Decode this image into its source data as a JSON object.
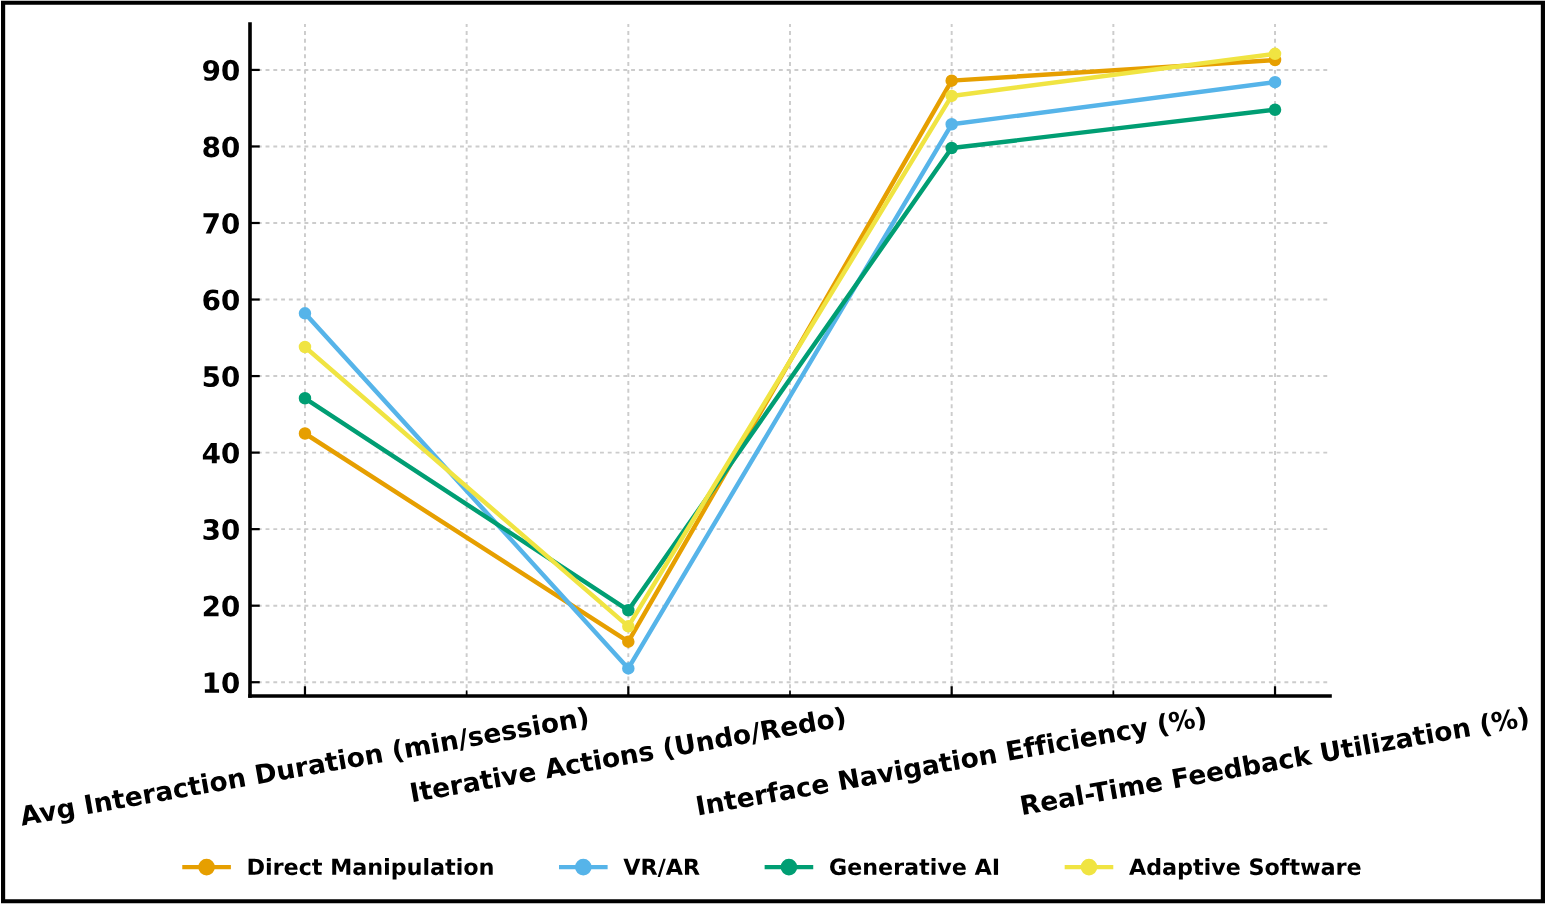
{
  "chart_data": {
    "type": "line",
    "categories": [
      "Avg Interaction Duration (min/session)",
      "Iterative Actions (Undo/Redo)",
      "Interface Navigation Efficiency (%)",
      "Real-Time Feedback Utilization (%)"
    ],
    "series": [
      {
        "name": "Direct Manipulation",
        "color": "#e69f00",
        "values": [
          42.5,
          15.3,
          88.6,
          91.3
        ]
      },
      {
        "name": "VR/AR",
        "color": "#56b4e9",
        "values": [
          58.2,
          11.8,
          82.9,
          88.4
        ]
      },
      {
        "name": "Generative AI",
        "color": "#009e73",
        "values": [
          47.1,
          19.4,
          79.8,
          84.8
        ]
      },
      {
        "name": "Adaptive Software",
        "color": "#f0e442",
        "values": [
          53.8,
          17.3,
          86.6,
          92.1
        ]
      }
    ],
    "ylim": [
      8.2,
      96
    ],
    "yticks": [
      10,
      20,
      30,
      40,
      50,
      60,
      70,
      80,
      90
    ],
    "grid": true,
    "legend": "bottom",
    "marker": "circle",
    "line_style": "solid"
  }
}
